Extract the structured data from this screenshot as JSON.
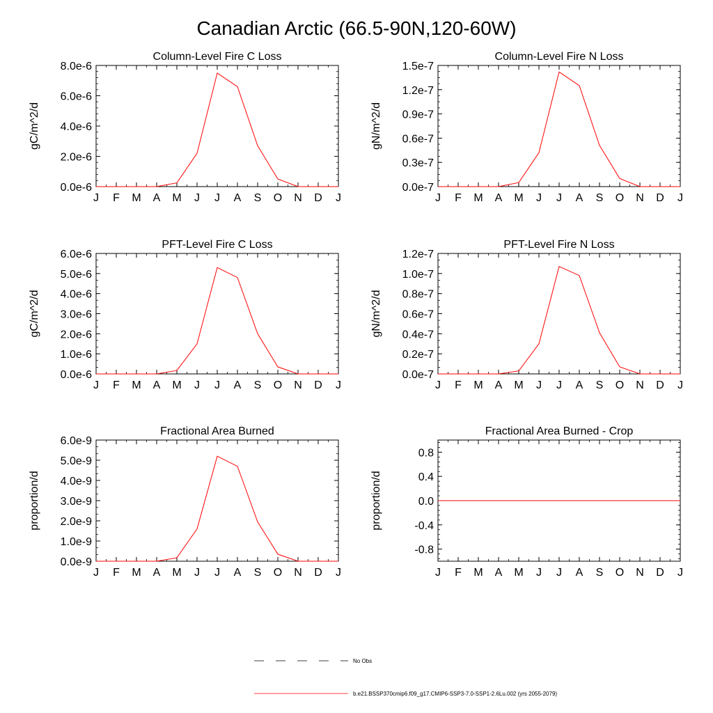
{
  "page": {
    "title": "Canadian Arctic (66.5-90N,120-60W)"
  },
  "months": [
    "J",
    "F",
    "M",
    "A",
    "M",
    "J",
    "J",
    "A",
    "S",
    "O",
    "N",
    "D",
    "J"
  ],
  "colors": {
    "model_line": "#ff0000",
    "obs_line": "#000000",
    "axis": "#000000"
  },
  "legend": {
    "obs_label": "No Obs",
    "model_label": "b.e21.BSSP370cmip6.f09_g17.CMIP6-SSP3-7.0-SSP1-2.6Lu.002 (yrs 2055-2079)"
  },
  "chart_data": [
    {
      "type": "line",
      "title": "Column-Level Fire C Loss",
      "xlabel": "",
      "ylabel": "gC/m^2/d",
      "ylim": [
        0,
        8e-06
      ],
      "yticks": [
        0,
        2e-06,
        4e-06,
        6e-06,
        8e-06
      ],
      "ytick_labels": [
        "0.0e-6",
        "2.0e-6",
        "4.0e-6",
        "6.0e-6",
        "8.0e-6"
      ],
      "yminor": 4,
      "x": [
        "J",
        "F",
        "M",
        "A",
        "M",
        "J",
        "J",
        "A",
        "S",
        "O",
        "N",
        "D",
        "J"
      ],
      "values": [
        0,
        0,
        0,
        0,
        2.5e-07,
        2.2e-06,
        7.5e-06,
        6.6e-06,
        2.7e-06,
        5e-07,
        0,
        0,
        0
      ]
    },
    {
      "type": "line",
      "title": "Column-Level Fire N Loss",
      "xlabel": "",
      "ylabel": "gN/m^2/d",
      "ylim": [
        0,
        1.5e-07
      ],
      "yticks": [
        0,
        3e-08,
        6e-08,
        9e-08,
        1.2e-07,
        1.5e-07
      ],
      "ytick_labels": [
        "0.0e-7",
        "0.3e-7",
        "0.6e-7",
        "0.9e-7",
        "1.2e-7",
        "1.5e-7"
      ],
      "yminor": 3,
      "x": [
        "J",
        "F",
        "M",
        "A",
        "M",
        "J",
        "J",
        "A",
        "S",
        "O",
        "N",
        "D",
        "J"
      ],
      "values": [
        0,
        0,
        0,
        0,
        5e-09,
        4.2e-08,
        1.42e-07,
        1.25e-07,
        5.1e-08,
        1e-08,
        0,
        0,
        0
      ]
    },
    {
      "type": "line",
      "title": "PFT-Level Fire C Loss",
      "xlabel": "",
      "ylabel": "gC/m^2/d",
      "ylim": [
        0,
        6e-06
      ],
      "yticks": [
        0,
        1e-06,
        2e-06,
        3e-06,
        4e-06,
        5e-06,
        6e-06
      ],
      "ytick_labels": [
        "0.0e-6",
        "1.0e-6",
        "2.0e-6",
        "3.0e-6",
        "4.0e-6",
        "5.0e-6",
        "6.0e-6"
      ],
      "yminor": 2,
      "x": [
        "J",
        "F",
        "M",
        "A",
        "M",
        "J",
        "J",
        "A",
        "S",
        "O",
        "N",
        "D",
        "J"
      ],
      "values": [
        0,
        0,
        0,
        0,
        1.7e-07,
        1.5e-06,
        5.3e-06,
        4.8e-06,
        2e-06,
        3.5e-07,
        0,
        0,
        0
      ]
    },
    {
      "type": "line",
      "title": "PFT-Level Fire N Loss",
      "xlabel": "",
      "ylabel": "gN/m^2/d",
      "ylim": [
        0,
        1.2e-07
      ],
      "yticks": [
        0,
        2e-08,
        4e-08,
        6e-08,
        8e-08,
        1e-07,
        1.2e-07
      ],
      "ytick_labels": [
        "0.0e-7",
        "0.2e-7",
        "0.4e-7",
        "0.6e-7",
        "0.8e-7",
        "1.0e-7",
        "1.2e-7"
      ],
      "yminor": 2,
      "x": [
        "J",
        "F",
        "M",
        "A",
        "M",
        "J",
        "J",
        "A",
        "S",
        "O",
        "N",
        "D",
        "J"
      ],
      "values": [
        0,
        0,
        0,
        0,
        3e-09,
        3e-08,
        1.07e-07,
        9.8e-08,
        4.1e-08,
        7e-09,
        0,
        0,
        0
      ]
    },
    {
      "type": "line",
      "title": "Fractional Area Burned",
      "xlabel": "",
      "ylabel": "proportion/d",
      "ylim": [
        0,
        6e-09
      ],
      "yticks": [
        0,
        1e-09,
        2e-09,
        3e-09,
        4e-09,
        5e-09,
        6e-09
      ],
      "ytick_labels": [
        "0.0e-9",
        "1.0e-9",
        "2.0e-9",
        "3.0e-9",
        "4.0e-9",
        "5.0e-9",
        "6.0e-9"
      ],
      "yminor": 2,
      "x": [
        "J",
        "F",
        "M",
        "A",
        "M",
        "J",
        "J",
        "A",
        "S",
        "O",
        "N",
        "D",
        "J"
      ],
      "values": [
        0,
        0,
        0,
        0,
        1.7e-10,
        1.6e-09,
        5.2e-09,
        4.7e-09,
        1.95e-09,
        3.5e-10,
        0,
        0,
        0
      ]
    },
    {
      "type": "line",
      "title": "Fractional Area Burned - Crop",
      "xlabel": "",
      "ylabel": "proportion/d",
      "ylim": [
        -1.0,
        1.0
      ],
      "yticks": [
        -0.8,
        -0.4,
        0.0,
        0.4,
        0.8
      ],
      "ytick_labels": [
        "-0.8",
        "-0.4",
        "0.0",
        "0.4",
        "0.8"
      ],
      "yminor": 4,
      "x": [
        "J",
        "F",
        "M",
        "A",
        "M",
        "J",
        "J",
        "A",
        "S",
        "O",
        "N",
        "D",
        "J"
      ],
      "values": [
        0,
        0,
        0,
        0,
        0,
        0,
        0,
        0,
        0,
        0,
        0,
        0,
        0
      ]
    }
  ]
}
